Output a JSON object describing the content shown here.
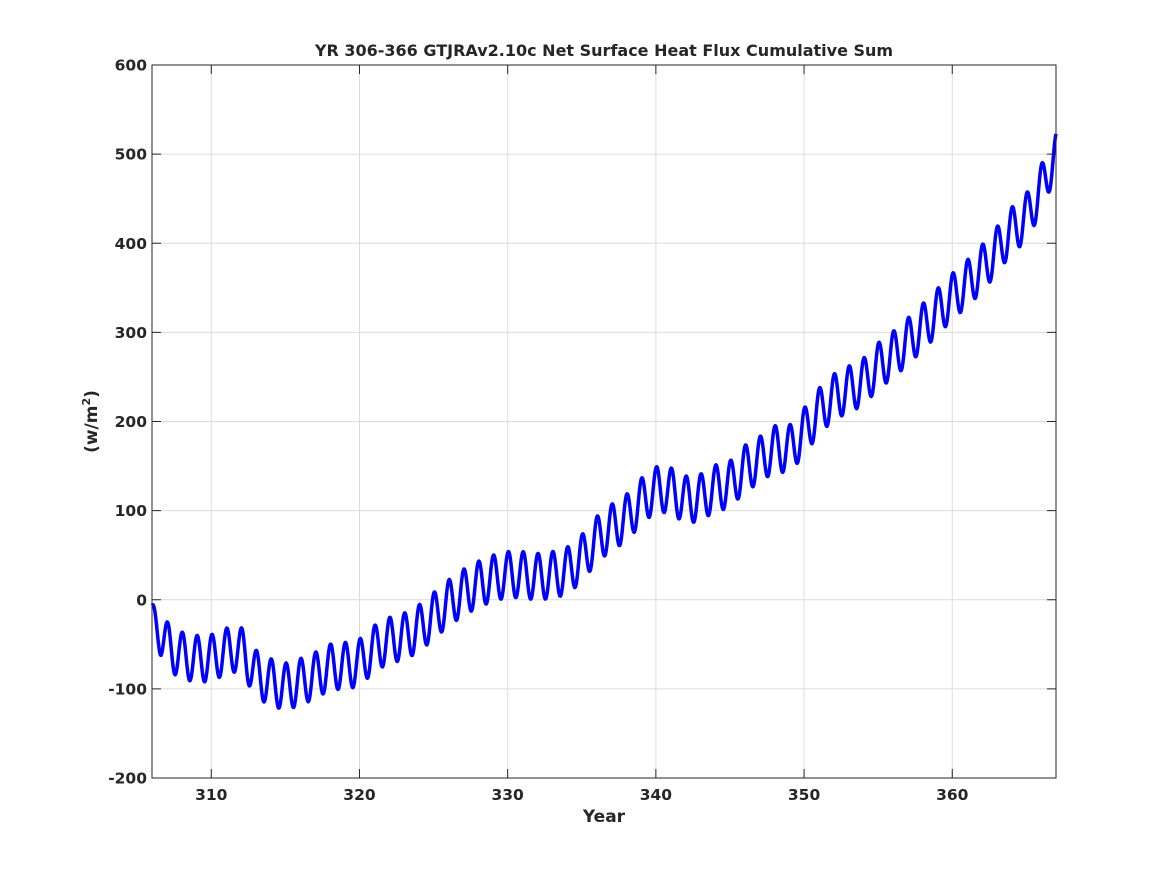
{
  "chart_data": {
    "type": "line",
    "title": "YR 306-366 GTJRAv2.10c Net Surface Heat Flux  Cumulative Sum",
    "xlabel": "Year",
    "ylabel": "(w/m",
    "ylabel_sup": "2",
    "ylabel_close": ")",
    "xlim": [
      306,
      367
    ],
    "ylim": [
      -200,
      600
    ],
    "xticks": [
      310,
      320,
      330,
      340,
      350,
      360
    ],
    "yticks": [
      -200,
      -100,
      0,
      100,
      200,
      300,
      400,
      500,
      600
    ],
    "grid": true,
    "line_color": "#0000ff",
    "grid_color": "#dcdcdc",
    "axis_color": "#262626",
    "seasonal_amplitude": 26,
    "series": [
      {
        "x": [
          306,
          307,
          308,
          309,
          310,
          311,
          312,
          313,
          314,
          315,
          316,
          317,
          318,
          319,
          320,
          321,
          322,
          323,
          324,
          325,
          326,
          327,
          328,
          329,
          330,
          331,
          332,
          333,
          334,
          335,
          336,
          337,
          338,
          339,
          340,
          341,
          342,
          343,
          344,
          345,
          346,
          347,
          348,
          349,
          350,
          351,
          352,
          353,
          354,
          355,
          356,
          357,
          358,
          359,
          360,
          361,
          362,
          363,
          364,
          365,
          366,
          367
        ],
        "y": [
          -20,
          -50,
          -62,
          -66,
          -65,
          -58,
          -57,
          -82,
          -92,
          -97,
          -92,
          -85,
          -76,
          -74,
          -70,
          -55,
          -46,
          -41,
          -32,
          -18,
          -4,
          8,
          17,
          24,
          28,
          28,
          26,
          28,
          33,
          47,
          67,
          81,
          92,
          110,
          123,
          122,
          113,
          115,
          125,
          130,
          147,
          157,
          169,
          170,
          189,
          211,
          227,
          236,
          245,
          262,
          275,
          290,
          306,
          323,
          340,
          355,
          372,
          392,
          414,
          430,
          462,
          498
        ]
      }
    ]
  }
}
